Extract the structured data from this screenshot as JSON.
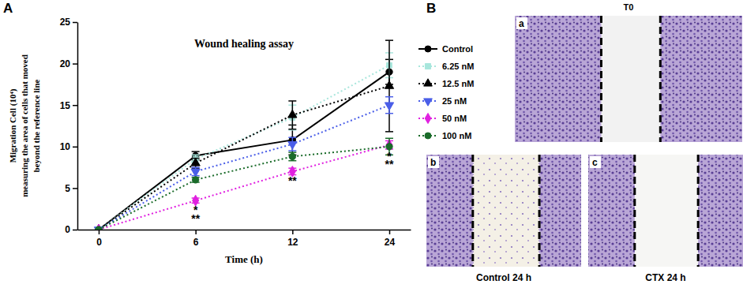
{
  "chart_data": {
    "type": "line",
    "title": "Wound healing assay",
    "x_label": "Time (h)",
    "y_label": [
      "Migration Cell (10⁴)",
      "measuring the area of cells that moved",
      "beyond the reference line"
    ],
    "categories": [
      "0",
      "6",
      "12",
      "24"
    ],
    "ylim": [
      0,
      25
    ],
    "yticks": [
      0,
      5,
      10,
      15,
      20,
      25
    ],
    "legend": "right",
    "series": [
      {
        "name": "Control",
        "color": "#000000",
        "marker": "circle",
        "line_style": "solid",
        "values": [
          0,
          8.9,
          10.8,
          19.0
        ],
        "errors": [
          0,
          0.5,
          1.8,
          1.5
        ]
      },
      {
        "name": "6.25 nM",
        "color": "#a8e6dc",
        "marker": "square",
        "line_style": "dotted",
        "values": [
          0,
          8.5,
          13.5,
          19.8
        ],
        "errors": [
          0,
          0.5,
          1.5,
          1.5
        ]
      },
      {
        "name": "12.5 nM",
        "color": "#000000",
        "marker": "triangle",
        "line_style": "dotted",
        "values": [
          0,
          8.0,
          13.8,
          17.3
        ],
        "errors": [
          0,
          0.6,
          1.7,
          5.5
        ]
      },
      {
        "name": "25 nM",
        "color": "#4a5ee8",
        "marker": "triangle-down",
        "line_style": "dotted",
        "values": [
          0,
          7.0,
          10.3,
          15.0
        ],
        "errors": [
          0,
          0.5,
          0.8,
          1.0
        ]
      },
      {
        "name": "50 nM",
        "color": "#e020e0",
        "marker": "diamond",
        "line_style": "dotted",
        "values": [
          0,
          3.5,
          7.0,
          10.2
        ],
        "errors": [
          0,
          0.3,
          0.4,
          0.5
        ]
      },
      {
        "name": "100 nM",
        "color": "#1a6b2a",
        "marker": "circle",
        "line_style": "dotted",
        "values": [
          0,
          6.0,
          8.8,
          10.0
        ],
        "errors": [
          0,
          0.3,
          0.5,
          1.0
        ]
      }
    ],
    "annotations": [
      {
        "text": "*",
        "x": "6",
        "y": 1.9
      },
      {
        "text": "**",
        "x": "6",
        "y": 0.9
      },
      {
        "text": "**",
        "x": "12",
        "y": 5.4
      },
      {
        "text": "*",
        "x": "24",
        "y": 8.4
      },
      {
        "text": "**",
        "x": "24",
        "y": 7.4
      }
    ]
  },
  "panel_labels": [
    "A",
    "B"
  ],
  "panel_b": {
    "images": [
      {
        "letter": "a",
        "title": "T0"
      },
      {
        "letter": "b",
        "caption": "Control 24 h"
      },
      {
        "letter": "c",
        "caption": "CTX 24 h"
      }
    ]
  }
}
